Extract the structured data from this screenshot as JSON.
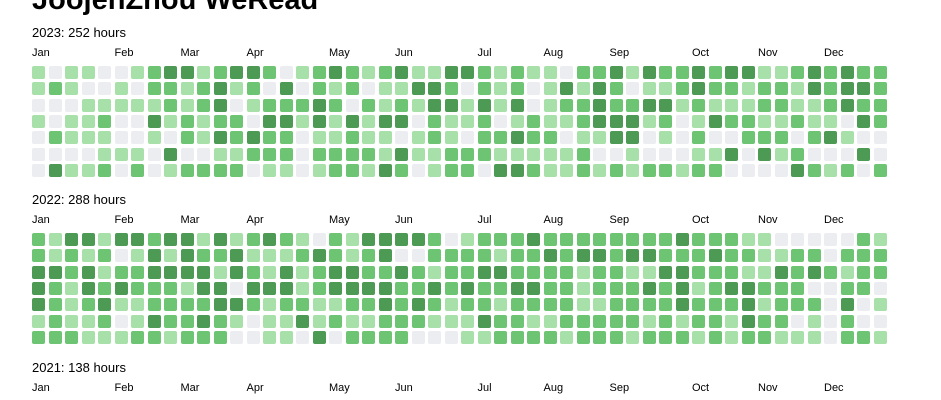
{
  "page": {
    "title": "JoojenZhou WeRead"
  },
  "palette": {
    "level0": "#ebedf0",
    "level1": "#a7e0a8",
    "level2": "#6dc473",
    "level3": "#4d9a55"
  },
  "chart_data": [
    {
      "type": "heatmap",
      "title": "2023: 252 hours",
      "year": 2023,
      "total_hours": 252,
      "month_labels": [
        "Jan",
        "Feb",
        "Mar",
        "Apr",
        "May",
        "Jun",
        "Jul",
        "Aug",
        "Sep",
        "Oct",
        "Nov",
        "Dec"
      ],
      "month_start_weeks": [
        0,
        5,
        9,
        13,
        18,
        22,
        27,
        31,
        35,
        40,
        44,
        48
      ],
      "row_labels": [],
      "levels": [
        "1011001233123320123212311332121102231322323311232322",
        "1210010221231203021201133202120131320112322122132332",
        "0001111121230122232021213313130122322331211122112322",
        "1011200312122033131313302112012112333120132211211032",
        "0211100102132322011211012102232201133010200222023100",
        "0000111030011222022221311222111112001000113031200030",
        "0311202012222011012213201220332112121221220000321202"
      ]
    },
    {
      "type": "heatmap",
      "title": "2022: 288 hours",
      "year": 2022,
      "total_hours": 288,
      "month_labels": [
        "Jan",
        "Feb",
        "Mar",
        "Apr",
        "May",
        "Jun",
        "Jul",
        "Aug",
        "Sep",
        "Oct",
        "Nov",
        "Dec"
      ],
      "month_start_weeks": [
        0,
        5,
        9,
        13,
        18,
        22,
        27,
        31,
        35,
        40,
        44,
        48
      ],
      "row_labels": [],
      "levels": [
        "2133133233131232102133332012223222222223222110000021",
        "2121201313223111232123002222122323323322232211220222",
        "3323122333313213123322321223322221221133222113232122",
        "3213232221330333123333223232233221222323123322200220",
        "3212311222233212211223232122122221122223222312220301",
        "1211201322321011312112221113221122222121221322010200",
        "2221112212220011030222200011222212221222121221110221"
      ]
    },
    {
      "type": "heatmap",
      "title": "2021: 138 hours",
      "year": 2021,
      "total_hours": 138,
      "month_labels": [
        "Jan",
        "Feb",
        "Mar",
        "Apr",
        "May",
        "Jun",
        "Jul",
        "Aug",
        "Sep",
        "Oct",
        "Nov",
        "Dec"
      ],
      "month_start_weeks": [
        0,
        5,
        9,
        13,
        18,
        22,
        27,
        31,
        35,
        40,
        44,
        48
      ],
      "row_labels": [],
      "levels": []
    }
  ]
}
